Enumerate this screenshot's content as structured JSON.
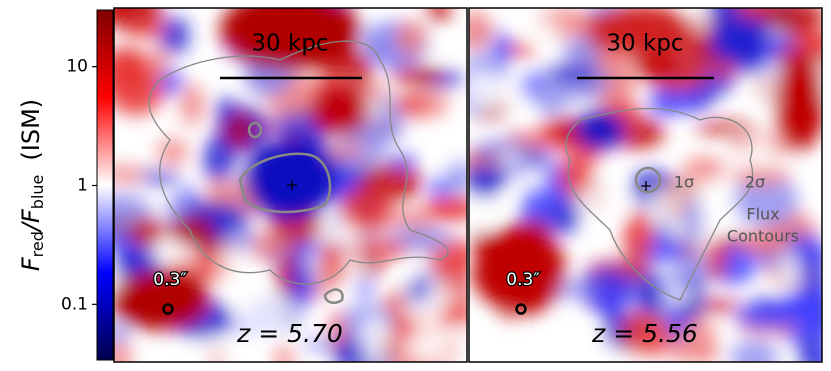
{
  "chart_data": {
    "type": "image",
    "ylabel": [
      "F",
      "red",
      "/F",
      "blue",
      "(ISM)"
    ],
    "ylim": [
      0.034,
      30
    ],
    "yticks": [
      0.1,
      1,
      10
    ],
    "log_scale": true,
    "colormap": [
      "#00004d",
      "#0000ff",
      "#ffffff",
      "#ff0000",
      "#800000"
    ],
    "panels": [
      {
        "scale_label": "30 kpc",
        "beam_label": "0.3″",
        "redshift_label": "z = 5.70"
      },
      {
        "scale_label": "30 kpc",
        "beam_label": "0.3″",
        "redshift_label": "z = 5.56",
        "contour_labels": [
          "1σ",
          "2σ",
          "Flux",
          "Contours"
        ]
      }
    ]
  }
}
